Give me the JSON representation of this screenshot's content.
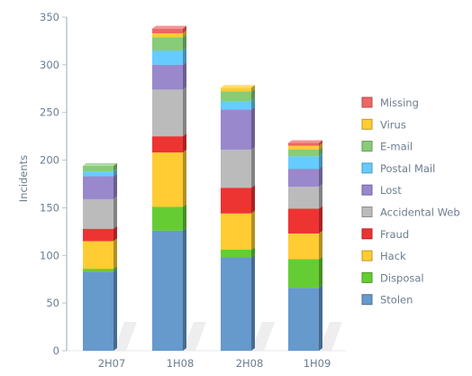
{
  "chart_data": {
    "type": "bar",
    "stacked": true,
    "style": "3d",
    "ylabel": "Incidents",
    "xlabel": "",
    "ylim": [
      0,
      350
    ],
    "yticks": [
      0,
      50,
      100,
      150,
      200,
      250,
      300,
      350
    ],
    "grid": false,
    "legend_position": "right",
    "categories": [
      "2H07",
      "1H08",
      "2H08",
      "1H09"
    ],
    "series": [
      {
        "name": "Stolen",
        "color": "#6699cc",
        "values": [
          83,
          126,
          98,
          66
        ]
      },
      {
        "name": "Disposal",
        "color": "#66cc33",
        "values": [
          3,
          25,
          8,
          30
        ]
      },
      {
        "name": "Hack",
        "color": "#ffcc33",
        "values": [
          29,
          57,
          38,
          27
        ]
      },
      {
        "name": "Fraud",
        "color": "#ee3333",
        "values": [
          13,
          17,
          27,
          26
        ]
      },
      {
        "name": "Accidental Web",
        "color": "#bbbbbb",
        "values": [
          31,
          49,
          40,
          23
        ]
      },
      {
        "name": "Lost",
        "color": "#9988cc",
        "values": [
          24,
          26,
          42,
          19
        ]
      },
      {
        "name": "Postal Mail",
        "color": "#66ccff",
        "values": [
          5,
          15,
          9,
          13
        ]
      },
      {
        "name": "E-mail",
        "color": "#88cc77",
        "values": [
          6,
          14,
          10,
          7
        ]
      },
      {
        "name": "Virus",
        "color": "#ffcc33",
        "values": [
          0,
          4,
          4,
          4
        ]
      },
      {
        "name": "Missing",
        "color": "#ee6666",
        "values": [
          0,
          5,
          0,
          3
        ]
      }
    ],
    "legend_order": [
      "Missing",
      "Virus",
      "E-mail",
      "Postal Mail",
      "Lost",
      "Accidental Web",
      "Fraud",
      "Hack",
      "Disposal",
      "Stolen"
    ]
  }
}
